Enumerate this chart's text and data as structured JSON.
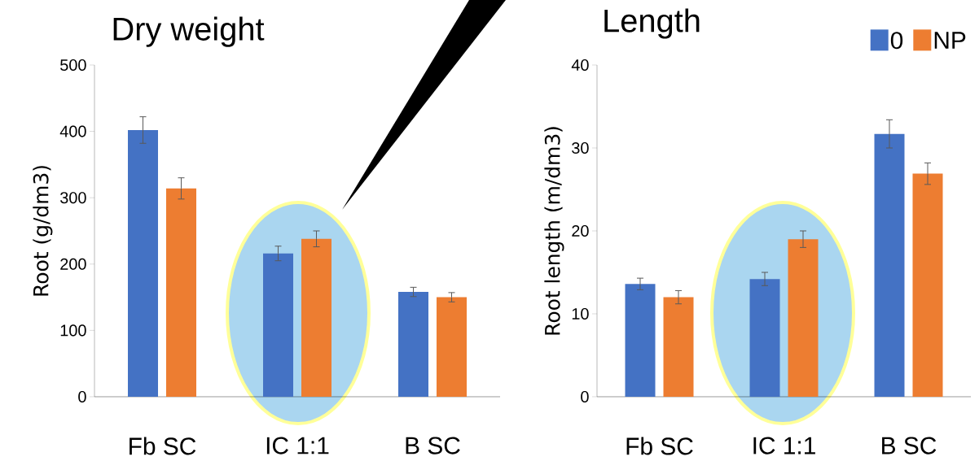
{
  "chart_data": [
    {
      "type": "bar",
      "title": "Dry weight",
      "ylabel": "Root (g/dm3)",
      "categories": [
        "Fb SC",
        "IC 1:1",
        "B SC"
      ],
      "series": [
        {
          "color": "#4472c4",
          "values": [
            402,
            216,
            158
          ],
          "errors": [
            20,
            11,
            7
          ]
        },
        {
          "color": "#ed7d31",
          "values": [
            314,
            238,
            150
          ],
          "errors": [
            16,
            12,
            7
          ]
        }
      ],
      "ylim": [
        0,
        500
      ],
      "yticks": [
        0,
        100,
        200,
        300,
        400,
        500
      ],
      "legend": false
    },
    {
      "type": "bar",
      "title": "Length",
      "ylabel": "Root length (m/dm3)",
      "categories": [
        "Fb SC",
        "IC 1:1",
        "B SC"
      ],
      "series": [
        {
          "name": "0",
          "color": "#4472c4",
          "values": [
            13.6,
            14.2,
            31.7
          ],
          "errors": [
            0.7,
            0.8,
            1.7
          ]
        },
        {
          "name": "NP",
          "color": "#ed7d31",
          "values": [
            12.0,
            19.0,
            26.9
          ],
          "errors": [
            0.8,
            1.0,
            1.3
          ]
        }
      ],
      "ylim": [
        0,
        40
      ],
      "yticks": [
        0,
        10,
        20,
        30,
        40
      ],
      "legend": "top right"
    }
  ]
}
